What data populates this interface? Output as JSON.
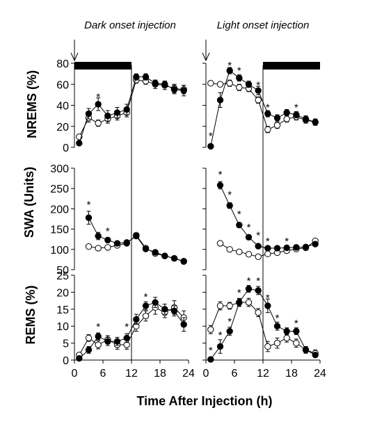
{
  "figure": {
    "columns": [
      "Dark onset injection",
      "Light onset injection"
    ],
    "xlabel": "Time After Injection (h)"
  },
  "chart_data": [
    {
      "type": "line",
      "panel": "dark-nrems",
      "ylabel": "NREMS (%)",
      "xlim": [
        0,
        24
      ],
      "ylim": [
        0,
        80
      ],
      "yticks": [
        0,
        20,
        40,
        60,
        80
      ],
      "xticks": [
        0,
        6,
        12,
        18,
        24
      ],
      "x": [
        1,
        3,
        5,
        7,
        9,
        11,
        13,
        15,
        17,
        19,
        21,
        23
      ],
      "series": [
        {
          "marker": "open",
          "values": [
            10,
            28,
            23,
            27,
            30,
            33,
            64,
            63,
            60,
            59,
            56,
            55
          ],
          "err": [
            2,
            4,
            3,
            4,
            4,
            4,
            3,
            3,
            4,
            4,
            4,
            4
          ]
        },
        {
          "marker": "filled",
          "values": [
            4,
            32,
            41,
            30,
            33,
            36,
            67,
            67,
            61,
            60,
            55,
            54
          ],
          "err": [
            1,
            5,
            6,
            5,
            5,
            5,
            3,
            3,
            3,
            3,
            4,
            5
          ]
        }
      ],
      "stars": [
        {
          "x": 5,
          "y": 50
        }
      ],
      "dark_bar": [
        0,
        12
      ],
      "arrow_at": 0,
      "divider_at": 12
    },
    {
      "type": "line",
      "panel": "light-nrems",
      "ylabel": "",
      "xlim": [
        0,
        24
      ],
      "ylim": [
        0,
        80
      ],
      "xticks": [
        0,
        6,
        12,
        18,
        24
      ],
      "x": [
        1,
        3,
        5,
        7,
        9,
        11,
        13,
        15,
        17,
        19,
        21,
        23
      ],
      "series": [
        {
          "marker": "open",
          "values": [
            61,
            60,
            61,
            57,
            56,
            45,
            17,
            21,
            27,
            29,
            26,
            24
          ],
          "err": [
            2,
            2,
            3,
            3,
            3,
            3,
            3,
            3,
            3,
            3,
            3,
            3
          ]
        },
        {
          "marker": "filled",
          "values": [
            1,
            45,
            73,
            66,
            60,
            54,
            32,
            28,
            33,
            31,
            27,
            24
          ],
          "err": [
            1,
            7,
            3,
            3,
            3,
            4,
            3,
            3,
            3,
            3,
            3,
            3
          ]
        }
      ],
      "stars": [
        {
          "x": 1,
          "y": 13
        },
        {
          "x": 5,
          "y": 80
        },
        {
          "x": 7,
          "y": 75
        },
        {
          "x": 11,
          "y": 61
        },
        {
          "x": 13,
          "y": 40
        },
        {
          "x": 19,
          "y": 40
        }
      ],
      "dark_bar": [
        12,
        24
      ],
      "arrow_at": 0,
      "divider_at": 12
    },
    {
      "type": "line",
      "panel": "dark-swa",
      "ylabel": "SWA (Units)",
      "xlim": [
        0,
        24
      ],
      "ylim": [
        50,
        300
      ],
      "yticks": [
        50,
        100,
        150,
        200,
        250,
        300
      ],
      "xticks": [
        0,
        6,
        12,
        18,
        24
      ],
      "x": [
        3,
        5,
        7,
        9,
        11,
        13,
        15,
        17,
        19,
        21,
        23
      ],
      "series": [
        {
          "marker": "open",
          "values": [
            107,
            103,
            105,
            110,
            115,
            135,
            103,
            90,
            84,
            78,
            71
          ],
          "err": [
            3,
            3,
            3,
            3,
            3,
            4,
            3,
            3,
            3,
            3,
            3
          ]
        },
        {
          "marker": "filled",
          "values": [
            178,
            133,
            123,
            115,
            117,
            133,
            101,
            93,
            84,
            78,
            70
          ],
          "err": [
            16,
            9,
            6,
            5,
            4,
            4,
            3,
            3,
            3,
            3,
            3
          ]
        }
      ],
      "stars": [
        {
          "x": 3,
          "y": 215
        },
        {
          "x": 7,
          "y": 150
        }
      ],
      "divider_at": 12
    },
    {
      "type": "line",
      "panel": "light-swa",
      "ylabel": "",
      "xlim": [
        0,
        24
      ],
      "ylim": [
        50,
        300
      ],
      "xticks": [
        0,
        6,
        12,
        18,
        24
      ],
      "x": [
        3,
        5,
        7,
        9,
        11,
        13,
        15,
        17,
        19,
        21,
        23
      ],
      "series": [
        {
          "marker": "open",
          "values": [
            115,
            100,
            94,
            88,
            82,
            89,
            92,
            97,
            101,
            104,
            121
          ],
          "err": [
            3,
            3,
            3,
            3,
            3,
            3,
            3,
            3,
            3,
            3,
            3
          ]
        },
        {
          "marker": "filled",
          "values": [
            258,
            208,
            160,
            130,
            108,
            103,
            103,
            104,
            105,
            106,
            113
          ],
          "err": [
            9,
            7,
            6,
            6,
            5,
            5,
            5,
            4,
            4,
            4,
            4
          ]
        }
      ],
      "stars": [
        {
          "x": 3,
          "y": 290
        },
        {
          "x": 5,
          "y": 240
        },
        {
          "x": 7,
          "y": 192
        },
        {
          "x": 9,
          "y": 160
        },
        {
          "x": 11,
          "y": 140
        },
        {
          "x": 13,
          "y": 125
        },
        {
          "x": 17,
          "y": 125
        }
      ],
      "divider_at": 12
    },
    {
      "type": "line",
      "panel": "dark-rems",
      "ylabel": "REMS (%)",
      "xlim": [
        0,
        24
      ],
      "ylim": [
        0,
        25
      ],
      "yticks": [
        0,
        5,
        10,
        15,
        20,
        25
      ],
      "xticks": [
        0,
        6,
        12,
        18,
        24
      ],
      "x": [
        1,
        3,
        5,
        7,
        9,
        11,
        13,
        15,
        17,
        19,
        21,
        23
      ],
      "series": [
        {
          "marker": "open",
          "values": [
            1.5,
            6.5,
            4.5,
            6.0,
            4.5,
            4.5,
            10.0,
            13.0,
            15.5,
            14.0,
            15.5,
            12.5
          ],
          "err": [
            0.5,
            1.0,
            1.2,
            1.2,
            1.3,
            1.3,
            1.5,
            1.5,
            2.0,
            1.5,
            2.0,
            2.0
          ]
        },
        {
          "marker": "filled",
          "values": [
            0.5,
            3.0,
            7.0,
            5.5,
            5.5,
            6.5,
            12.0,
            16.0,
            17.0,
            15.0,
            14.5,
            10.5
          ],
          "err": [
            0.5,
            1.0,
            1.0,
            1.2,
            1.2,
            1.3,
            1.5,
            1.2,
            1.5,
            1.5,
            1.5,
            2.0
          ]
        }
      ],
      "stars": [
        {
          "x": 5,
          "y": 10.5
        },
        {
          "x": 11,
          "y": 10.5
        },
        {
          "x": 15,
          "y": 19.3
        }
      ],
      "divider_at": 12
    },
    {
      "type": "line",
      "panel": "light-rems",
      "ylabel": "",
      "xlim": [
        0,
        24
      ],
      "ylim": [
        0,
        25
      ],
      "xticks": [
        0,
        6,
        12,
        18,
        24
      ],
      "x": [
        1,
        3,
        5,
        7,
        9,
        11,
        13,
        15,
        17,
        19,
        21,
        23
      ],
      "series": [
        {
          "marker": "open",
          "values": [
            9.0,
            16.0,
            16.0,
            17.0,
            17.0,
            14.0,
            4.0,
            5.0,
            6.5,
            5.0,
            3.0,
            2.0
          ],
          "err": [
            1.2,
            1.2,
            1.0,
            1.0,
            1.2,
            1.2,
            1.5,
            1.5,
            1.2,
            1.2,
            1.0,
            1.0
          ]
        },
        {
          "marker": "filled",
          "values": [
            0.2,
            4.0,
            8.5,
            17.0,
            21.0,
            20.5,
            16.0,
            10.0,
            8.5,
            8.5,
            3.0,
            1.5
          ],
          "err": [
            0.3,
            2.0,
            1.2,
            1.2,
            1.0,
            1.2,
            2.0,
            1.2,
            1.0,
            1.0,
            0.8,
            0.6
          ]
        }
      ],
      "stars": [
        {
          "x": 1,
          "y": 3.5
        },
        {
          "x": 3,
          "y": 8.0
        },
        {
          "x": 5,
          "y": 12.0
        },
        {
          "x": 7,
          "y": 20.5
        },
        {
          "x": 9,
          "y": 24.0
        },
        {
          "x": 11,
          "y": 24.0
        },
        {
          "x": 13,
          "y": 19.0
        },
        {
          "x": 15,
          "y": 13.0
        },
        {
          "x": 19,
          "y": 11.5
        }
      ],
      "divider_at": 12
    }
  ]
}
